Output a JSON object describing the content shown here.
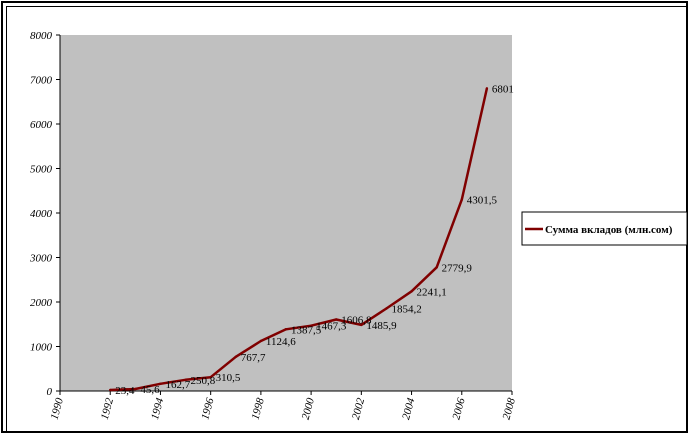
{
  "chart_data": {
    "type": "line",
    "title": "",
    "xlabel": "",
    "ylabel": "",
    "xlim": [
      1990,
      2008
    ],
    "ylim": [
      0,
      8000
    ],
    "x_ticks": [
      "1990",
      "1992",
      "1994",
      "1996",
      "1998",
      "2000",
      "2002",
      "2004",
      "2006",
      "2008"
    ],
    "y_ticks": [
      "0",
      "1000",
      "2000",
      "3000",
      "4000",
      "5000",
      "6000",
      "7000",
      "8000"
    ],
    "grid": false,
    "legend_position": "right",
    "series": [
      {
        "name": "Сумма вкладов (млн.сом)",
        "color": "#800000",
        "points": [
          {
            "x": 1992,
            "y": 23.4,
            "label": "23,4"
          },
          {
            "x": 1993,
            "y": 45.6,
            "label": "45,6"
          },
          {
            "x": 1994,
            "y": 162.7,
            "label": "162,7"
          },
          {
            "x": 1995,
            "y": 250.8,
            "label": "250,8"
          },
          {
            "x": 1996,
            "y": 310.5,
            "label": "310,5"
          },
          {
            "x": 1997,
            "y": 767.7,
            "label": "767,7"
          },
          {
            "x": 1998,
            "y": 1124.6,
            "label": "1124,6"
          },
          {
            "x": 1999,
            "y": 1387.5,
            "label": "1387,5"
          },
          {
            "x": 2000,
            "y": 1467.3,
            "label": "1467,3"
          },
          {
            "x": 2001,
            "y": 1606.8,
            "label": "1606,8"
          },
          {
            "x": 2002,
            "y": 1485.9,
            "label": "1485,9"
          },
          {
            "x": 2003,
            "y": 1854.2,
            "label": "1854,2"
          },
          {
            "x": 2004,
            "y": 2241.1,
            "label": "2241,1"
          },
          {
            "x": 2005,
            "y": 2779.9,
            "label": "2779,9"
          },
          {
            "x": 2006,
            "y": 4301.5,
            "label": "4301,5"
          },
          {
            "x": 2007,
            "y": 6801,
            "label": "6801"
          }
        ]
      }
    ]
  },
  "colors": {
    "plot_background": "#c0c0c0",
    "line": "#800000",
    "frame": "#000000"
  }
}
